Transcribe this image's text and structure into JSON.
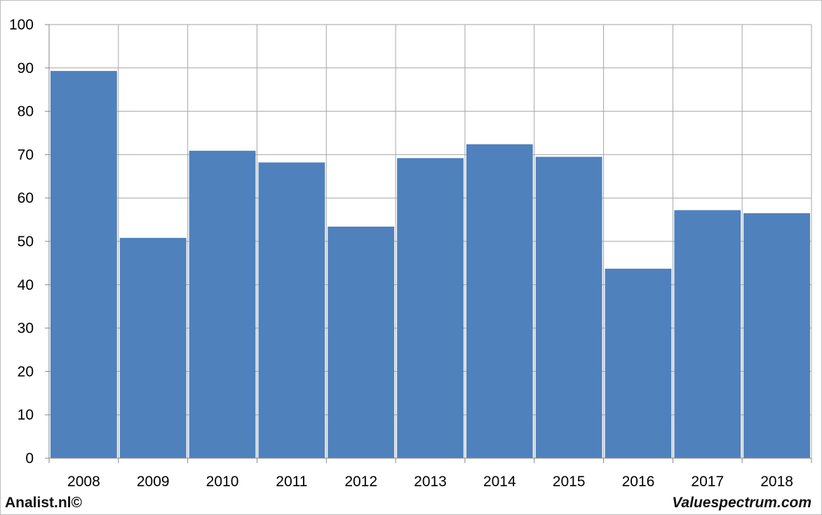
{
  "chart_data": {
    "type": "bar",
    "categories": [
      "2008",
      "2009",
      "2010",
      "2011",
      "2012",
      "2013",
      "2014",
      "2015",
      "2016",
      "2017",
      "2018"
    ],
    "values": [
      89.3,
      50.8,
      70.9,
      68.2,
      53.4,
      69.2,
      72.4,
      69.5,
      43.7,
      57.2,
      56.5
    ],
    "ylim": [
      0,
      100
    ],
    "yticks": [
      0,
      10,
      20,
      30,
      40,
      50,
      60,
      70,
      80,
      90,
      100
    ],
    "grid": true,
    "bar_color": "#4f81bd"
  },
  "footer": {
    "left": "Analist.nl©",
    "right": "Valuespectrum.com"
  }
}
